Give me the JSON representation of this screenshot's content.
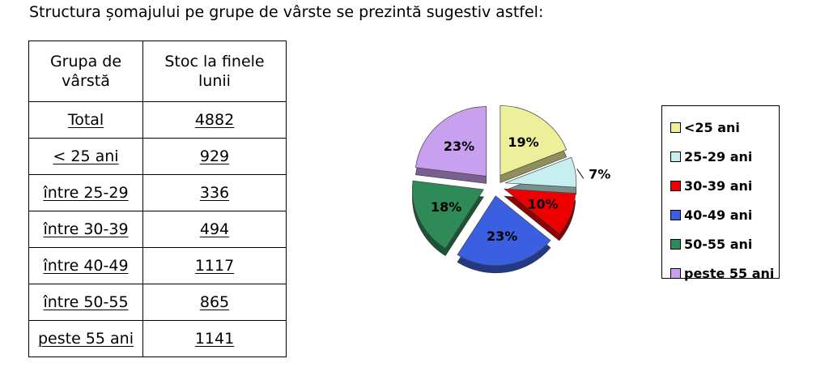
{
  "heading": "Structura șomajului pe grupe de vârste se prezintă sugestiv astfel:",
  "table": {
    "header": [
      "Grupa de vârstă",
      "Stoc la finele lunii"
    ],
    "rows": [
      {
        "group": "Total",
        "value": "4882"
      },
      {
        "group": "< 25 ani",
        "value": "929"
      },
      {
        "group": "între 25-29",
        "value": "336"
      },
      {
        "group": "între 30-39",
        "value": "494"
      },
      {
        "group": "între 40-49",
        "value": "1117"
      },
      {
        "group": "între 50-55",
        "value": "865"
      },
      {
        "group": "peste 55 ani",
        "value": "1141"
      }
    ]
  },
  "chart_data": {
    "type": "pie",
    "title": "",
    "legend_position": "right",
    "slices": [
      {
        "name": "<25 ani",
        "value": 19,
        "label": "19%",
        "color": "#eeef9a"
      },
      {
        "name": "25-29 ani",
        "value": 7,
        "label": "7%",
        "color": "#c7efef"
      },
      {
        "name": "30-39 ani",
        "value": 10,
        "label": "10%",
        "color": "#ee0000"
      },
      {
        "name": "40-49 ani",
        "value": 23,
        "label": "23%",
        "color": "#3a5fe0"
      },
      {
        "name": "50-55 ani",
        "value": 18,
        "label": "18%",
        "color": "#2e8b57"
      },
      {
        "name": "peste 55 ani",
        "value": 23,
        "label": "23%",
        "color": "#c9a0f0"
      }
    ]
  }
}
